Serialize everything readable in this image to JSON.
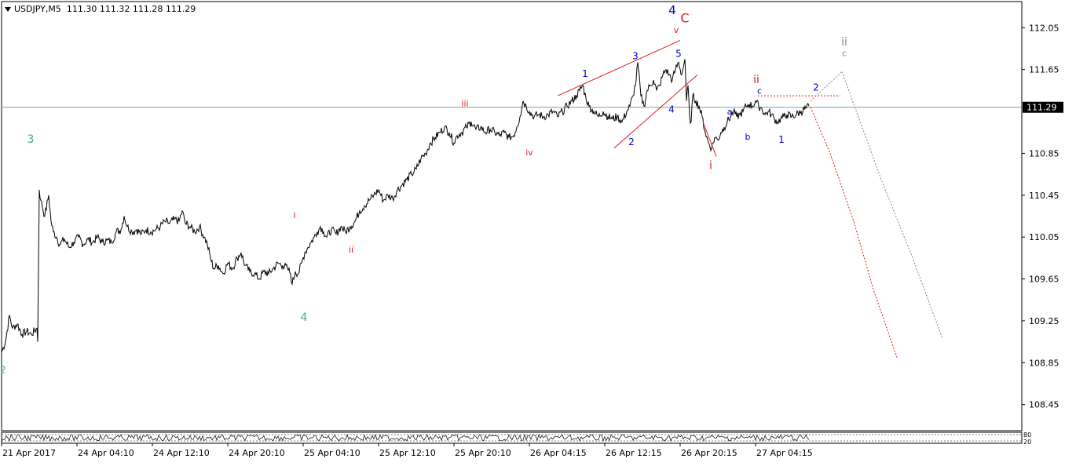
{
  "header": {
    "symbol": "USDJPY,M5",
    "ohlc": "111.30 111.32 111.28 111.29"
  },
  "colors": {
    "price": "#000000",
    "wave_red": "#e31a1c",
    "wave_blue": "#0000cc",
    "wave_green": "#3cb371",
    "wave_gray": "#888888",
    "current_line": "#7aa0a0"
  },
  "indicator": {
    "labels": [
      "80",
      "20"
    ]
  },
  "chart_data": {
    "type": "line",
    "title": "USDJPY,M5",
    "current_price": 111.29,
    "current_price_label": "111.29",
    "ylim": [
      108.2,
      112.3
    ],
    "y_ticks": [
      112.05,
      111.65,
      110.85,
      110.45,
      110.05,
      109.65,
      109.25,
      108.85,
      108.45
    ],
    "y_tick_labels": [
      "112.05",
      "111.65",
      "110.85",
      "110.45",
      "110.05",
      "109.65",
      "109.25",
      "108.85",
      "108.45"
    ],
    "xlim": [
      0,
      1300
    ],
    "x_tick_labels": [
      "21 Apr 2017",
      "24 Apr 04:10",
      "24 Apr 12:10",
      "24 Apr 20:10",
      "25 Apr 04:10",
      "25 Apr 12:10",
      "25 Apr 20:10",
      "26 Apr 04:15",
      "26 Apr 12:15",
      "26 Apr 20:15",
      "27 Apr 04:15"
    ],
    "x_tick_positions": [
      0,
      96,
      192,
      288,
      384,
      480,
      576,
      672,
      768,
      864,
      960
    ],
    "price_path": [
      [
        0,
        108.95
      ],
      [
        5,
        109.05
      ],
      [
        10,
        109.3
      ],
      [
        14,
        109.18
      ],
      [
        20,
        109.22
      ],
      [
        26,
        109.12
      ],
      [
        32,
        109.15
      ],
      [
        38,
        109.12
      ],
      [
        45,
        109.18
      ],
      [
        46,
        109.05
      ],
      [
        48,
        110.5
      ],
      [
        50,
        110.4
      ],
      [
        55,
        110.25
      ],
      [
        60,
        110.45
      ],
      [
        63,
        110.2
      ],
      [
        66,
        110.1
      ],
      [
        70,
        110.05
      ],
      [
        74,
        109.98
      ],
      [
        80,
        110.03
      ],
      [
        86,
        109.95
      ],
      [
        92,
        110.0
      ],
      [
        98,
        110.05
      ],
      [
        104,
        109.98
      ],
      [
        110,
        110.03
      ],
      [
        116,
        110.0
      ],
      [
        122,
        110.05
      ],
      [
        128,
        110.0
      ],
      [
        134,
        110.02
      ],
      [
        140,
        110.0
      ],
      [
        146,
        110.1
      ],
      [
        152,
        110.12
      ],
      [
        156,
        110.25
      ],
      [
        160,
        110.15
      ],
      [
        166,
        110.1
      ],
      [
        172,
        110.12
      ],
      [
        178,
        110.08
      ],
      [
        184,
        110.12
      ],
      [
        190,
        110.1
      ],
      [
        196,
        110.12
      ],
      [
        202,
        110.15
      ],
      [
        208,
        110.2
      ],
      [
        214,
        110.18
      ],
      [
        220,
        110.22
      ],
      [
        226,
        110.2
      ],
      [
        230,
        110.3
      ],
      [
        234,
        110.18
      ],
      [
        240,
        110.15
      ],
      [
        246,
        110.1
      ],
      [
        252,
        110.15
      ],
      [
        258,
        110.05
      ],
      [
        262,
        109.98
      ],
      [
        266,
        109.85
      ],
      [
        270,
        109.75
      ],
      [
        276,
        109.78
      ],
      [
        282,
        109.7
      ],
      [
        288,
        109.8
      ],
      [
        294,
        109.75
      ],
      [
        300,
        109.85
      ],
      [
        305,
        109.9
      ],
      [
        310,
        109.78
      ],
      [
        316,
        109.72
      ],
      [
        322,
        109.7
      ],
      [
        328,
        109.65
      ],
      [
        334,
        109.72
      ],
      [
        340,
        109.7
      ],
      [
        346,
        109.75
      ],
      [
        352,
        109.8
      ],
      [
        358,
        109.78
      ],
      [
        364,
        109.75
      ],
      [
        368,
        109.7
      ],
      [
        370,
        109.6
      ],
      [
        374,
        109.72
      ],
      [
        378,
        109.7
      ],
      [
        382,
        109.8
      ],
      [
        386,
        109.9
      ],
      [
        390,
        109.95
      ],
      [
        394,
        110.0
      ],
      [
        398,
        110.05
      ],
      [
        402,
        110.1
      ],
      [
        406,
        110.15
      ],
      [
        410,
        110.1
      ],
      [
        414,
        110.05
      ],
      [
        420,
        110.12
      ],
      [
        426,
        110.08
      ],
      [
        432,
        110.15
      ],
      [
        438,
        110.1
      ],
      [
        444,
        110.15
      ],
      [
        450,
        110.2
      ],
      [
        456,
        110.3
      ],
      [
        462,
        110.35
      ],
      [
        468,
        110.4
      ],
      [
        474,
        110.45
      ],
      [
        480,
        110.5
      ],
      [
        486,
        110.4
      ],
      [
        492,
        110.45
      ],
      [
        498,
        110.42
      ],
      [
        504,
        110.5
      ],
      [
        510,
        110.55
      ],
      [
        516,
        110.6
      ],
      [
        522,
        110.65
      ],
      [
        528,
        110.7
      ],
      [
        534,
        110.8
      ],
      [
        540,
        110.85
      ],
      [
        546,
        110.95
      ],
      [
        552,
        111.0
      ],
      [
        558,
        111.05
      ],
      [
        564,
        111.1
      ],
      [
        570,
        111.05
      ],
      [
        576,
        110.95
      ],
      [
        580,
        111.02
      ],
      [
        586,
        111.05
      ],
      [
        592,
        111.1
      ],
      [
        598,
        111.15
      ],
      [
        604,
        111.08
      ],
      [
        610,
        111.1
      ],
      [
        616,
        111.05
      ],
      [
        622,
        111.08
      ],
      [
        628,
        111.05
      ],
      [
        634,
        111.02
      ],
      [
        640,
        111.05
      ],
      [
        646,
        111.0
      ],
      [
        652,
        111.02
      ],
      [
        656,
        111.1
      ],
      [
        660,
        111.2
      ],
      [
        664,
        111.35
      ],
      [
        668,
        111.3
      ],
      [
        672,
        111.25
      ],
      [
        678,
        111.2
      ],
      [
        684,
        111.22
      ],
      [
        690,
        111.2
      ],
      [
        696,
        111.22
      ],
      [
        702,
        111.25
      ],
      [
        708,
        111.2
      ],
      [
        714,
        111.25
      ],
      [
        720,
        111.3
      ],
      [
        726,
        111.35
      ],
      [
        732,
        111.4
      ],
      [
        736,
        111.45
      ],
      [
        740,
        111.5
      ],
      [
        744,
        111.38
      ],
      [
        748,
        111.3
      ],
      [
        754,
        111.25
      ],
      [
        760,
        111.2
      ],
      [
        766,
        111.25
      ],
      [
        772,
        111.2
      ],
      [
        778,
        111.18
      ],
      [
        784,
        111.2
      ],
      [
        790,
        111.15
      ],
      [
        796,
        111.25
      ],
      [
        800,
        111.3
      ],
      [
        804,
        111.4
      ],
      [
        808,
        111.55
      ],
      [
        810,
        111.72
      ],
      [
        814,
        111.4
      ],
      [
        818,
        111.3
      ],
      [
        822,
        111.45
      ],
      [
        826,
        111.5
      ],
      [
        830,
        111.55
      ],
      [
        834,
        111.45
      ],
      [
        838,
        111.5
      ],
      [
        842,
        111.6
      ],
      [
        846,
        111.65
      ],
      [
        850,
        111.6
      ],
      [
        854,
        111.55
      ],
      [
        858,
        111.65
      ],
      [
        862,
        111.72
      ],
      [
        866,
        111.6
      ],
      [
        870,
        111.75
      ],
      [
        872,
        111.35
      ],
      [
        874,
        111.5
      ],
      [
        876,
        111.2
      ],
      [
        878,
        111.15
      ],
      [
        880,
        111.4
      ],
      [
        884,
        111.35
      ],
      [
        888,
        111.3
      ],
      [
        892,
        111.2
      ],
      [
        896,
        111.05
      ],
      [
        900,
        110.95
      ],
      [
        904,
        110.9
      ],
      [
        908,
        111.0
      ],
      [
        912,
        110.98
      ],
      [
        916,
        111.05
      ],
      [
        920,
        111.1
      ],
      [
        924,
        111.15
      ],
      [
        928,
        111.2
      ],
      [
        932,
        111.25
      ],
      [
        936,
        111.2
      ],
      [
        940,
        111.22
      ],
      [
        944,
        111.25
      ],
      [
        948,
        111.3
      ],
      [
        952,
        111.32
      ],
      [
        956,
        111.3
      ],
      [
        960,
        111.35
      ],
      [
        964,
        111.3
      ],
      [
        968,
        111.28
      ],
      [
        972,
        111.22
      ],
      [
        976,
        111.25
      ],
      [
        980,
        111.22
      ],
      [
        984,
        111.18
      ],
      [
        988,
        111.15
      ],
      [
        992,
        111.18
      ],
      [
        996,
        111.2
      ],
      [
        1000,
        111.22
      ],
      [
        1006,
        111.2
      ],
      [
        1012,
        111.22
      ],
      [
        1018,
        111.25
      ],
      [
        1024,
        111.28
      ],
      [
        1028,
        111.3
      ]
    ]
  },
  "wave_labels": [
    {
      "text": "3",
      "x": 37,
      "y": 110.95,
      "color": "green",
      "size": 14
    },
    {
      "text": "4",
      "x": 385,
      "y": 109.25,
      "color": "green",
      "size": 14
    },
    {
      "text": "2",
      "x": 2,
      "y": 108.75,
      "color": "green",
      "size": 12
    },
    {
      "text": "i",
      "x": 373,
      "y": 110.23,
      "color": "red",
      "size": 11
    },
    {
      "text": "ii",
      "x": 445,
      "y": 109.9,
      "color": "red",
      "size": 11
    },
    {
      "text": "iii",
      "x": 590,
      "y": 111.3,
      "color": "red",
      "size": 11
    },
    {
      "text": "iv",
      "x": 672,
      "y": 110.83,
      "color": "red",
      "size": 11
    },
    {
      "text": "v",
      "x": 859,
      "y": 112.0,
      "color": "red",
      "size": 11
    },
    {
      "text": "C",
      "x": 870,
      "y": 112.1,
      "color": "red",
      "size": 16
    },
    {
      "text": "4",
      "x": 854,
      "y": 112.18,
      "color": "blue",
      "size": 15
    },
    {
      "text": "1",
      "x": 743,
      "y": 111.58,
      "color": "blue",
      "size": 12
    },
    {
      "text": "2",
      "x": 802,
      "y": 110.93,
      "color": "blue",
      "size": 12
    },
    {
      "text": "3",
      "x": 807,
      "y": 111.75,
      "color": "blue",
      "size": 12
    },
    {
      "text": "4",
      "x": 853,
      "y": 111.24,
      "color": "blue",
      "size": 12
    },
    {
      "text": "5",
      "x": 862,
      "y": 111.77,
      "color": "blue",
      "size": 12
    },
    {
      "text": "i",
      "x": 903,
      "y": 110.7,
      "color": "red",
      "size": 14
    },
    {
      "text": "ii",
      "x": 961,
      "y": 111.52,
      "color": "red",
      "size": 14
    },
    {
      "text": "a",
      "x": 927,
      "y": 111.22,
      "color": "blue",
      "size": 11
    },
    {
      "text": "b",
      "x": 950,
      "y": 110.98,
      "color": "blue",
      "size": 11
    },
    {
      "text": "c",
      "x": 965,
      "y": 111.42,
      "color": "blue",
      "size": 11
    },
    {
      "text": "1",
      "x": 993,
      "y": 110.95,
      "color": "blue",
      "size": 12
    },
    {
      "text": "2",
      "x": 1037,
      "y": 111.45,
      "color": "blue",
      "size": 12
    },
    {
      "text": "ii",
      "x": 1073,
      "y": 111.88,
      "color": "gray",
      "size": 14
    },
    {
      "text": "c",
      "x": 1073,
      "y": 111.78,
      "color": "gray",
      "size": 11
    }
  ],
  "wave_lines": [
    {
      "color": "red",
      "dash": false,
      "points": [
        [
          708,
          111.4
        ],
        [
          864,
          111.93
        ]
      ]
    },
    {
      "color": "red",
      "dash": false,
      "points": [
        [
          780,
          110.9
        ],
        [
          886,
          111.6
        ]
      ]
    },
    {
      "color": "red",
      "dash": false,
      "points": [
        [
          893,
          111.15
        ],
        [
          910,
          110.82
        ]
      ]
    },
    {
      "color": "red",
      "dash": true,
      "points": [
        [
          963,
          111.4
        ],
        [
          1068,
          111.4
        ]
      ]
    },
    {
      "color": "red",
      "dash": true,
      "points": [
        [
          1030,
          111.29
        ],
        [
          1055,
          110.85
        ],
        [
          1085,
          110.2
        ],
        [
          1110,
          109.55
        ],
        [
          1140,
          108.9
        ]
      ]
    },
    {
      "color": "gray",
      "dash": true,
      "points": [
        [
          1030,
          111.35
        ],
        [
          1070,
          111.63
        ]
      ]
    },
    {
      "color": "gray",
      "dash": true,
      "points": [
        [
          1070,
          111.63
        ],
        [
          1120,
          110.6
        ],
        [
          1160,
          109.85
        ],
        [
          1198,
          109.08
        ]
      ]
    }
  ]
}
